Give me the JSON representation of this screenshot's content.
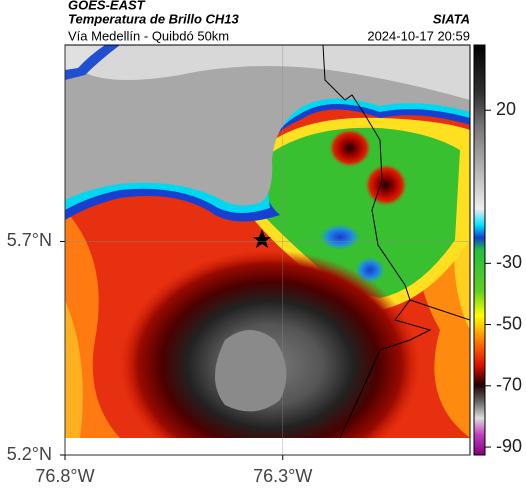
{
  "header": {
    "source": "GOES-EAST",
    "title": "Temperatura de Brillo CH13",
    "subtitle": "Vía Medellín - Quibdó 50km",
    "brand": "SIATA",
    "datetime": "2024-10-17 20:59"
  },
  "map": {
    "lon_range": [
      -76.8,
      -75.87
    ],
    "lat_range": [
      5.2,
      6.16
    ],
    "lat_ticks": [
      {
        "value": 5.7,
        "label": "5.7°N"
      },
      {
        "value": 5.2,
        "label": "5.2°N"
      }
    ],
    "lon_ticks": [
      {
        "value": -76.8,
        "label": "76.8°W"
      },
      {
        "value": -76.3,
        "label": "76.3°W"
      }
    ]
  },
  "colorbar": {
    "range": [
      -92.6,
      41.3
    ],
    "ticks": [
      20,
      -30,
      -50,
      -70,
      -90
    ]
  }
}
